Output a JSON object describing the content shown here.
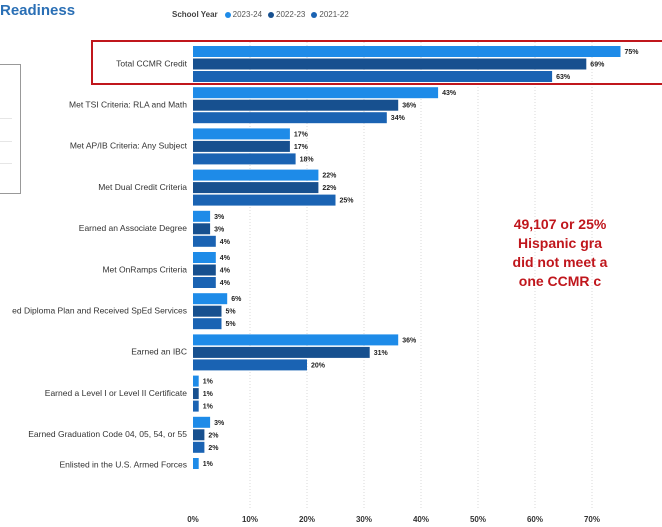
{
  "header": {
    "title": "Readiness"
  },
  "legend": {
    "title": "School Year",
    "items": [
      {
        "label": "2023-24",
        "color": "#1e8be8"
      },
      {
        "label": "2022-23",
        "color": "#17508f"
      },
      {
        "label": "2021-22",
        "color": "#1a63b3"
      }
    ]
  },
  "callout": {
    "lines": [
      "49,107 or 25%",
      "Hispanic gra",
      "did not meet a",
      "one CCMR c"
    ]
  },
  "chart_data": {
    "type": "bar",
    "orientation": "horizontal",
    "categories": [
      "Total CCMR Credit",
      "Met TSI Criteria: RLA and Math",
      "Met AP/IB Criteria: Any Subject",
      "Met Dual Credit Criteria",
      "Earned an Associate Degree",
      "Met OnRamps Criteria",
      "ed Diploma Plan and Received SpEd Services",
      "Earned an IBC",
      "Earned a Level I or Level II Certificate",
      "Earned Graduation Code 04, 05, 54, or 55",
      "Enlisted in the U.S. Armed Forces"
    ],
    "series": [
      {
        "name": "2023-24",
        "color": "#1e8be8",
        "values": [
          75,
          43,
          17,
          22,
          3,
          4,
          6,
          36,
          1,
          3,
          1
        ]
      },
      {
        "name": "2022-23",
        "color": "#17508f",
        "values": [
          69,
          36,
          17,
          22,
          3,
          4,
          5,
          31,
          1,
          2,
          null
        ]
      },
      {
        "name": "2021-22",
        "color": "#1a63b3",
        "values": [
          63,
          34,
          18,
          25,
          4,
          4,
          5,
          20,
          1,
          2,
          null
        ]
      }
    ],
    "value_labels": [
      [
        "75%",
        "69%",
        "63%"
      ],
      [
        "43%",
        "36%",
        "34%"
      ],
      [
        "17%",
        "17%",
        "18%"
      ],
      [
        "22%",
        "22%",
        "25%"
      ],
      [
        "3%",
        "3%",
        "4%"
      ],
      [
        "4%",
        "4%",
        "4%"
      ],
      [
        "6%",
        "5%",
        "5%"
      ],
      [
        "36%",
        "31%",
        "20%"
      ],
      [
        "1%",
        "1%",
        "1%"
      ],
      [
        "3%",
        "2%",
        "2%"
      ],
      [
        "1%"
      ]
    ],
    "x_ticks": [
      "0%",
      "10%",
      "20%",
      "30%",
      "40%",
      "50%",
      "60%",
      "70%"
    ],
    "xlim": [
      0,
      81
    ],
    "grid": true,
    "highlighted_category": "Total CCMR Credit"
  }
}
